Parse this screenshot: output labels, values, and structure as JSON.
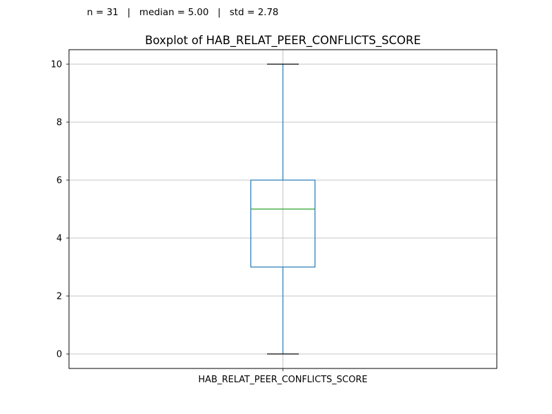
{
  "stats_line": "n = 31   |   median = 5.00   |   std = 2.78",
  "chart_data": {
    "type": "box",
    "title": "Boxplot of HAB_RELAT_PEER_CONFLICTS_SCORE",
    "categories": [
      "HAB_RELAT_PEER_CONFLICTS_SCORE"
    ],
    "boxes": [
      {
        "label": "HAB_RELAT_PEER_CONFLICTS_SCORE",
        "whisker_low": 0,
        "q1": 3,
        "median": 5,
        "q3": 6,
        "whisker_high": 10
      }
    ],
    "ylim": [
      -0.5,
      10.5
    ],
    "yticks": [
      0,
      2,
      4,
      6,
      8,
      10
    ],
    "grid": true,
    "colors": {
      "box": "#1f77b4",
      "median": "#2ca02c",
      "caps": "#000000",
      "grid": "#b0b0b0"
    }
  }
}
